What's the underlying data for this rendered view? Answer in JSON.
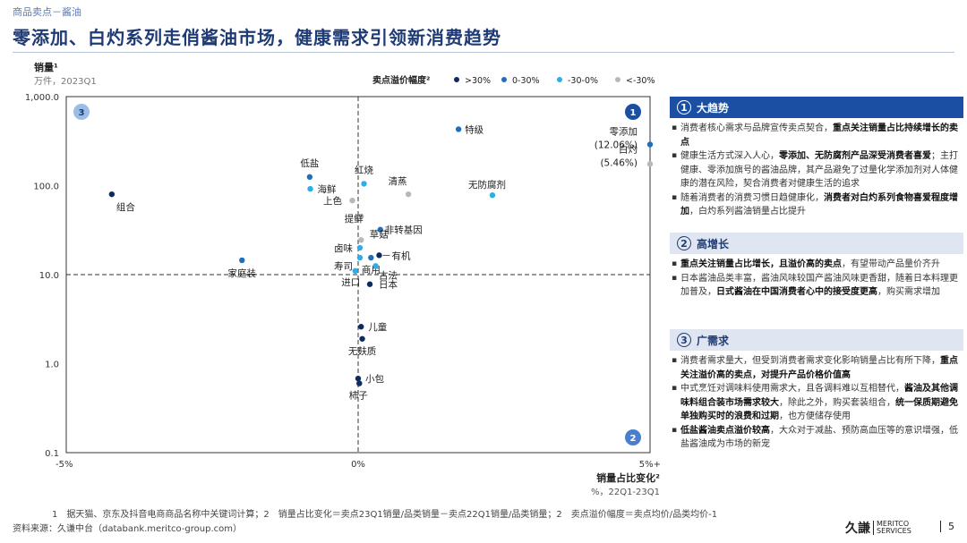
{
  "breadcrumb": "商品卖点－酱油",
  "title": "零添加、白灼系列走俏酱油市场，健康需求引领新消费趋势",
  "chart_data": {
    "type": "scatter",
    "ylabel": "销量¹",
    "ylabel_sub": "万件，2023Q1",
    "xlabel": "销量占比变化²",
    "xlabel_sub": "%，22Q1-23Q1",
    "y_scale": "log",
    "ylim": [
      0.1,
      1000
    ],
    "xlim": [
      -5,
      5
    ],
    "y_ticks": [
      {
        "value": 1000,
        "label": "1,000.0"
      },
      {
        "value": 100,
        "label": "100.0"
      },
      {
        "value": 10,
        "label": "10.0"
      },
      {
        "value": 1,
        "label": "1.0"
      },
      {
        "value": 0.1,
        "label": "0.1"
      }
    ],
    "x_ticks": [
      {
        "value": -5,
        "label": "-5%"
      },
      {
        "value": 0,
        "label": "0%"
      },
      {
        "value": 5,
        "label": "5%+"
      }
    ],
    "reference_lines": {
      "x": 0,
      "y": 10
    },
    "legend_title": "卖点溢价幅度²",
    "legend_position": "top",
    "series": [
      {
        "name": ">30%",
        "color": "#0d2b5e"
      },
      {
        "name": "0-30%",
        "color": "#1f6fbf"
      },
      {
        "name": "-30-0%",
        "color": "#2eaee8"
      },
      {
        "name": "<-30%",
        "color": "#b8b8b8"
      }
    ],
    "points": [
      {
        "label": "特级",
        "x": 1.72,
        "y": 430,
        "series": "0-30%"
      },
      {
        "label": "零添加",
        "x": 5.0,
        "y": 290,
        "series": "0-30%",
        "extra": "(12.06%)"
      },
      {
        "label": "白灼",
        "x": 5.0,
        "y": 175,
        "series": "<-30%",
        "extra": "(5.46%)"
      },
      {
        "label": "无防腐剂",
        "x": 2.3,
        "y": 78,
        "series": "-30-0%"
      },
      {
        "label": "组合",
        "x": -4.22,
        "y": 80,
        "series": ">30%"
      },
      {
        "label": "低盐",
        "x": -0.83,
        "y": 125,
        "series": "0-30%"
      },
      {
        "label": "海鲜",
        "x": -0.82,
        "y": 92,
        "series": "-30-0%"
      },
      {
        "label": "红烧",
        "x": 0.1,
        "y": 105,
        "series": "-30-0%"
      },
      {
        "label": "清蒸",
        "x": 0.86,
        "y": 80,
        "series": "<-30%"
      },
      {
        "label": "上色",
        "x": -0.1,
        "y": 68,
        "series": "<-30%"
      },
      {
        "label": "提鲜",
        "x": 0.05,
        "y": 45,
        "series": "<-30%"
      },
      {
        "label": "非转基因",
        "x": 0.38,
        "y": 32,
        "series": "0-30%"
      },
      {
        "label": "草菇",
        "x": 0.05,
        "y": 24.5,
        "series": "<-30%"
      },
      {
        "label": "卤味",
        "x": 0.03,
        "y": 20,
        "series": "-30-0%"
      },
      {
        "label": "寿司",
        "x": 0.03,
        "y": 15.5,
        "series": "-30-0%"
      },
      {
        "label": "有机",
        "x": 0.36,
        "y": 16.5,
        "series": ">30%"
      },
      {
        "label": "商用",
        "x": 0.22,
        "y": 15.5,
        "series": "0-30%"
      },
      {
        "label": "古法",
        "x": 0.3,
        "y": 12.5,
        "series": "-30-0%"
      },
      {
        "label": "进口",
        "x": -0.05,
        "y": 11,
        "series": "-30-0%"
      },
      {
        "label": "家庭装",
        "x": -1.99,
        "y": 14.5,
        "series": "0-30%"
      },
      {
        "label": "日本",
        "x": 0.2,
        "y": 7.8,
        "series": ">30%"
      },
      {
        "label": "儿童",
        "x": 0.05,
        "y": 2.6,
        "series": ">30%"
      },
      {
        "label": "无麸质",
        "x": 0.07,
        "y": 1.9,
        "series": ">30%"
      },
      {
        "label": "小包",
        "x": 0.0,
        "y": 0.68,
        "series": ">30%"
      },
      {
        "label": "柿子",
        "x": 0.02,
        "y": 0.6,
        "series": ">30%"
      }
    ],
    "quadrant_badges": [
      "1",
      "2",
      "3"
    ]
  },
  "panels": [
    {
      "number": "1",
      "title": "大趋势",
      "bullets": [
        [
          {
            "t": "消费者核心需求与品牌宣传卖点契合，"
          },
          {
            "t": "重点关注销量占比持续增长的卖点",
            "b": true
          }
        ],
        [
          {
            "t": "健康生活方式深入人心，"
          },
          {
            "t": "零添加、无防腐剂产品深受消费者喜爱",
            "b": true
          },
          {
            "t": "；主打健康、零添加旗号的酱油品牌，其产品避免了过量化学添加剂对人体健康的潜在风险，契合消费者对健康生活的追求"
          }
        ],
        [
          {
            "t": "随着消费者的消费习惯日趋健康化，"
          },
          {
            "t": "消费者对白灼系列食物喜爱程度增加",
            "b": true
          },
          {
            "t": "，白灼系列酱油销量占比提升"
          }
        ]
      ]
    },
    {
      "number": "2",
      "title": "高增长",
      "bullets": [
        [
          {
            "t": "重点关注销量占比增长，且溢价高的卖点",
            "b": true
          },
          {
            "t": "，有望带动产品量价齐升"
          }
        ],
        [
          {
            "t": "日本酱油品类丰富，酱油风味较国产酱油风味更香甜，随着日本料理更加普及，"
          },
          {
            "t": "日式酱油在中国消费者心中的接受度更高",
            "b": true
          },
          {
            "t": "，购买需求增加"
          }
        ]
      ]
    },
    {
      "number": "3",
      "title": "广需求",
      "bullets": [
        [
          {
            "t": "消费者需求量大，但受到消费者需求变化影响销量占比有所下降，"
          },
          {
            "t": "重点关注溢价高的卖点，对提升产品价格价值高",
            "b": true
          }
        ],
        [
          {
            "t": "中式烹饪对调味料使用需求大，且各调料难以互相替代，"
          },
          {
            "t": "酱油及其他调味料组合装市场需求较大",
            "b": true
          },
          {
            "t": "，除此之外，购买套装组合，"
          },
          {
            "t": "统一保质期避免单独购买时的浪费和过期",
            "b": true
          },
          {
            "t": "，也方便储存使用"
          }
        ],
        [
          {
            "t": "低盐酱油卖点溢价较高",
            "b": true
          },
          {
            "t": "，大众对于减盐、预防高血压等的意识增强，低盐酱油成为市场的新宠"
          }
        ]
      ]
    }
  ],
  "footnote": "1　据天猫、京东及抖音电商商品名称中关键词计算；2　销量占比变化＝卖点23Q1销量/品类销量－卖点22Q1销量/品类销量；2　卖点溢价幅度＝卖点均价/品类均价-1",
  "source": "资料来源：久谦中台（databank.meritco-group.com）",
  "logo": {
    "cn": "久謙",
    "en1": "MERITCO",
    "en2": "SERVICES"
  },
  "page_number": "5"
}
